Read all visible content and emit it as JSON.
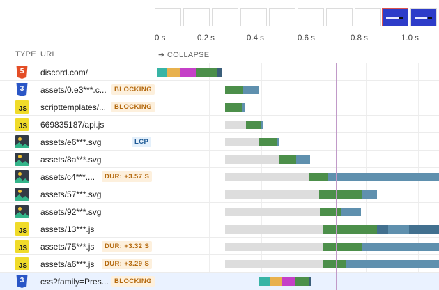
{
  "timeline": {
    "axis_labels": [
      "0 s",
      "0.2 s",
      "0.4 s",
      "0.6 s",
      "0.8 s",
      "1.0 s"
    ]
  },
  "columns": {
    "type": "TYPE",
    "url": "URL",
    "collapse": "➔ COLLAPSE"
  },
  "rows": [
    {
      "type": "html5-icon",
      "url": "discord.com/",
      "badge": "",
      "badge_kind": ""
    },
    {
      "type": "css3-icon",
      "url": "assets/0.e3***.c...",
      "badge": "BLOCKING",
      "badge_kind": "blocking"
    },
    {
      "type": "js-icon",
      "url": "scripttemplates/...",
      "badge": "BLOCKING",
      "badge_kind": "blocking"
    },
    {
      "type": "js-icon",
      "url": "669835187/api.js",
      "badge": "",
      "badge_kind": ""
    },
    {
      "type": "image-icon",
      "url": "assets/e6***.svg",
      "badge": "LCP",
      "badge_kind": "lcp"
    },
    {
      "type": "image-icon",
      "url": "assets/8a***.svg",
      "badge": "",
      "badge_kind": ""
    },
    {
      "type": "image-icon",
      "url": "assets/c4***....",
      "badge": "DUR: +3.57 S",
      "badge_kind": "dur"
    },
    {
      "type": "image-icon",
      "url": "assets/57***.svg",
      "badge": "",
      "badge_kind": ""
    },
    {
      "type": "image-icon",
      "url": "assets/92***.svg",
      "badge": "",
      "badge_kind": ""
    },
    {
      "type": "js-icon",
      "url": "assets/13***.js",
      "badge": "",
      "badge_kind": ""
    },
    {
      "type": "js-icon",
      "url": "assets/75***.js",
      "badge": "DUR: +3.32 S",
      "badge_kind": "dur"
    },
    {
      "type": "js-icon",
      "url": "assets/a6***.js",
      "badge": "DUR: +3.29 S",
      "badge_kind": "dur"
    },
    {
      "type": "css3-icon",
      "url": "css?family=Pres...",
      "badge": "BLOCKING",
      "badge_kind": "blocking"
    }
  ],
  "icons": {
    "html5": "5",
    "css3": "3",
    "js": "JS"
  },
  "colors": {
    "waiting": "#dddddd",
    "request": "#4c8f4a",
    "download": "#5f90ae",
    "dns": "#38b4a5",
    "connect": "#e8b14e",
    "ssl": "#c540c7",
    "marker": "#c19ac8",
    "highlight": "#eaf2ff"
  }
}
